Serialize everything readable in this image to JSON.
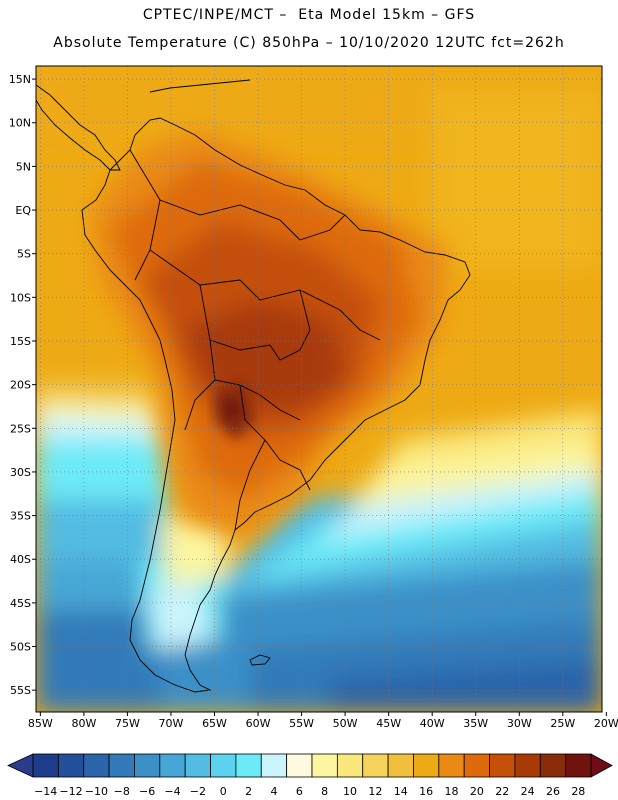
{
  "header": {
    "title_line1": "CPTEC/INPE/MCT –  Eta Model 15km – GFS",
    "title_line2": "Absolute Temperature (C) 850hPa – 10/10/2020 12UTC fct=262h"
  },
  "map": {
    "lat_labels": [
      "15N",
      "10N",
      "5N",
      "EQ",
      "5S",
      "10S",
      "15S",
      "20S",
      "25S",
      "30S",
      "35S",
      "40S",
      "45S",
      "50S",
      "55S"
    ],
    "lon_labels": [
      "85W",
      "80W",
      "75W",
      "70W",
      "65W",
      "60W",
      "55W",
      "50W",
      "45W",
      "40W",
      "35W",
      "30W",
      "25W",
      "20W"
    ],
    "lat_range": [
      -57.5,
      16.5
    ],
    "lon_range": [
      -85.5,
      -20.5
    ]
  },
  "colorbar": {
    "labels": [
      "-14",
      "-12",
      "-10",
      "-8",
      "-6",
      "-4",
      "-2",
      "0",
      "2",
      "4",
      "6",
      "8",
      "10",
      "12",
      "14",
      "16",
      "18",
      "20",
      "22",
      "24",
      "26",
      "28"
    ],
    "colors": [
      "#1e3c8c",
      "#23509b",
      "#2a64aa",
      "#327ab9",
      "#3b90c8",
      "#46a7d6",
      "#52bce2",
      "#5cd3ee",
      "#6ceaf8",
      "#ccf4fc",
      "#fefae0",
      "#fcf6a0",
      "#fae87c",
      "#f6d45c",
      "#f0c03c",
      "#eeaa14",
      "#ea8a14",
      "#de6a0c",
      "#c4500a",
      "#a83a08",
      "#882c0a",
      "#70130e"
    ],
    "under_color": "#2c3c8c",
    "over_color": "#700c18"
  }
}
